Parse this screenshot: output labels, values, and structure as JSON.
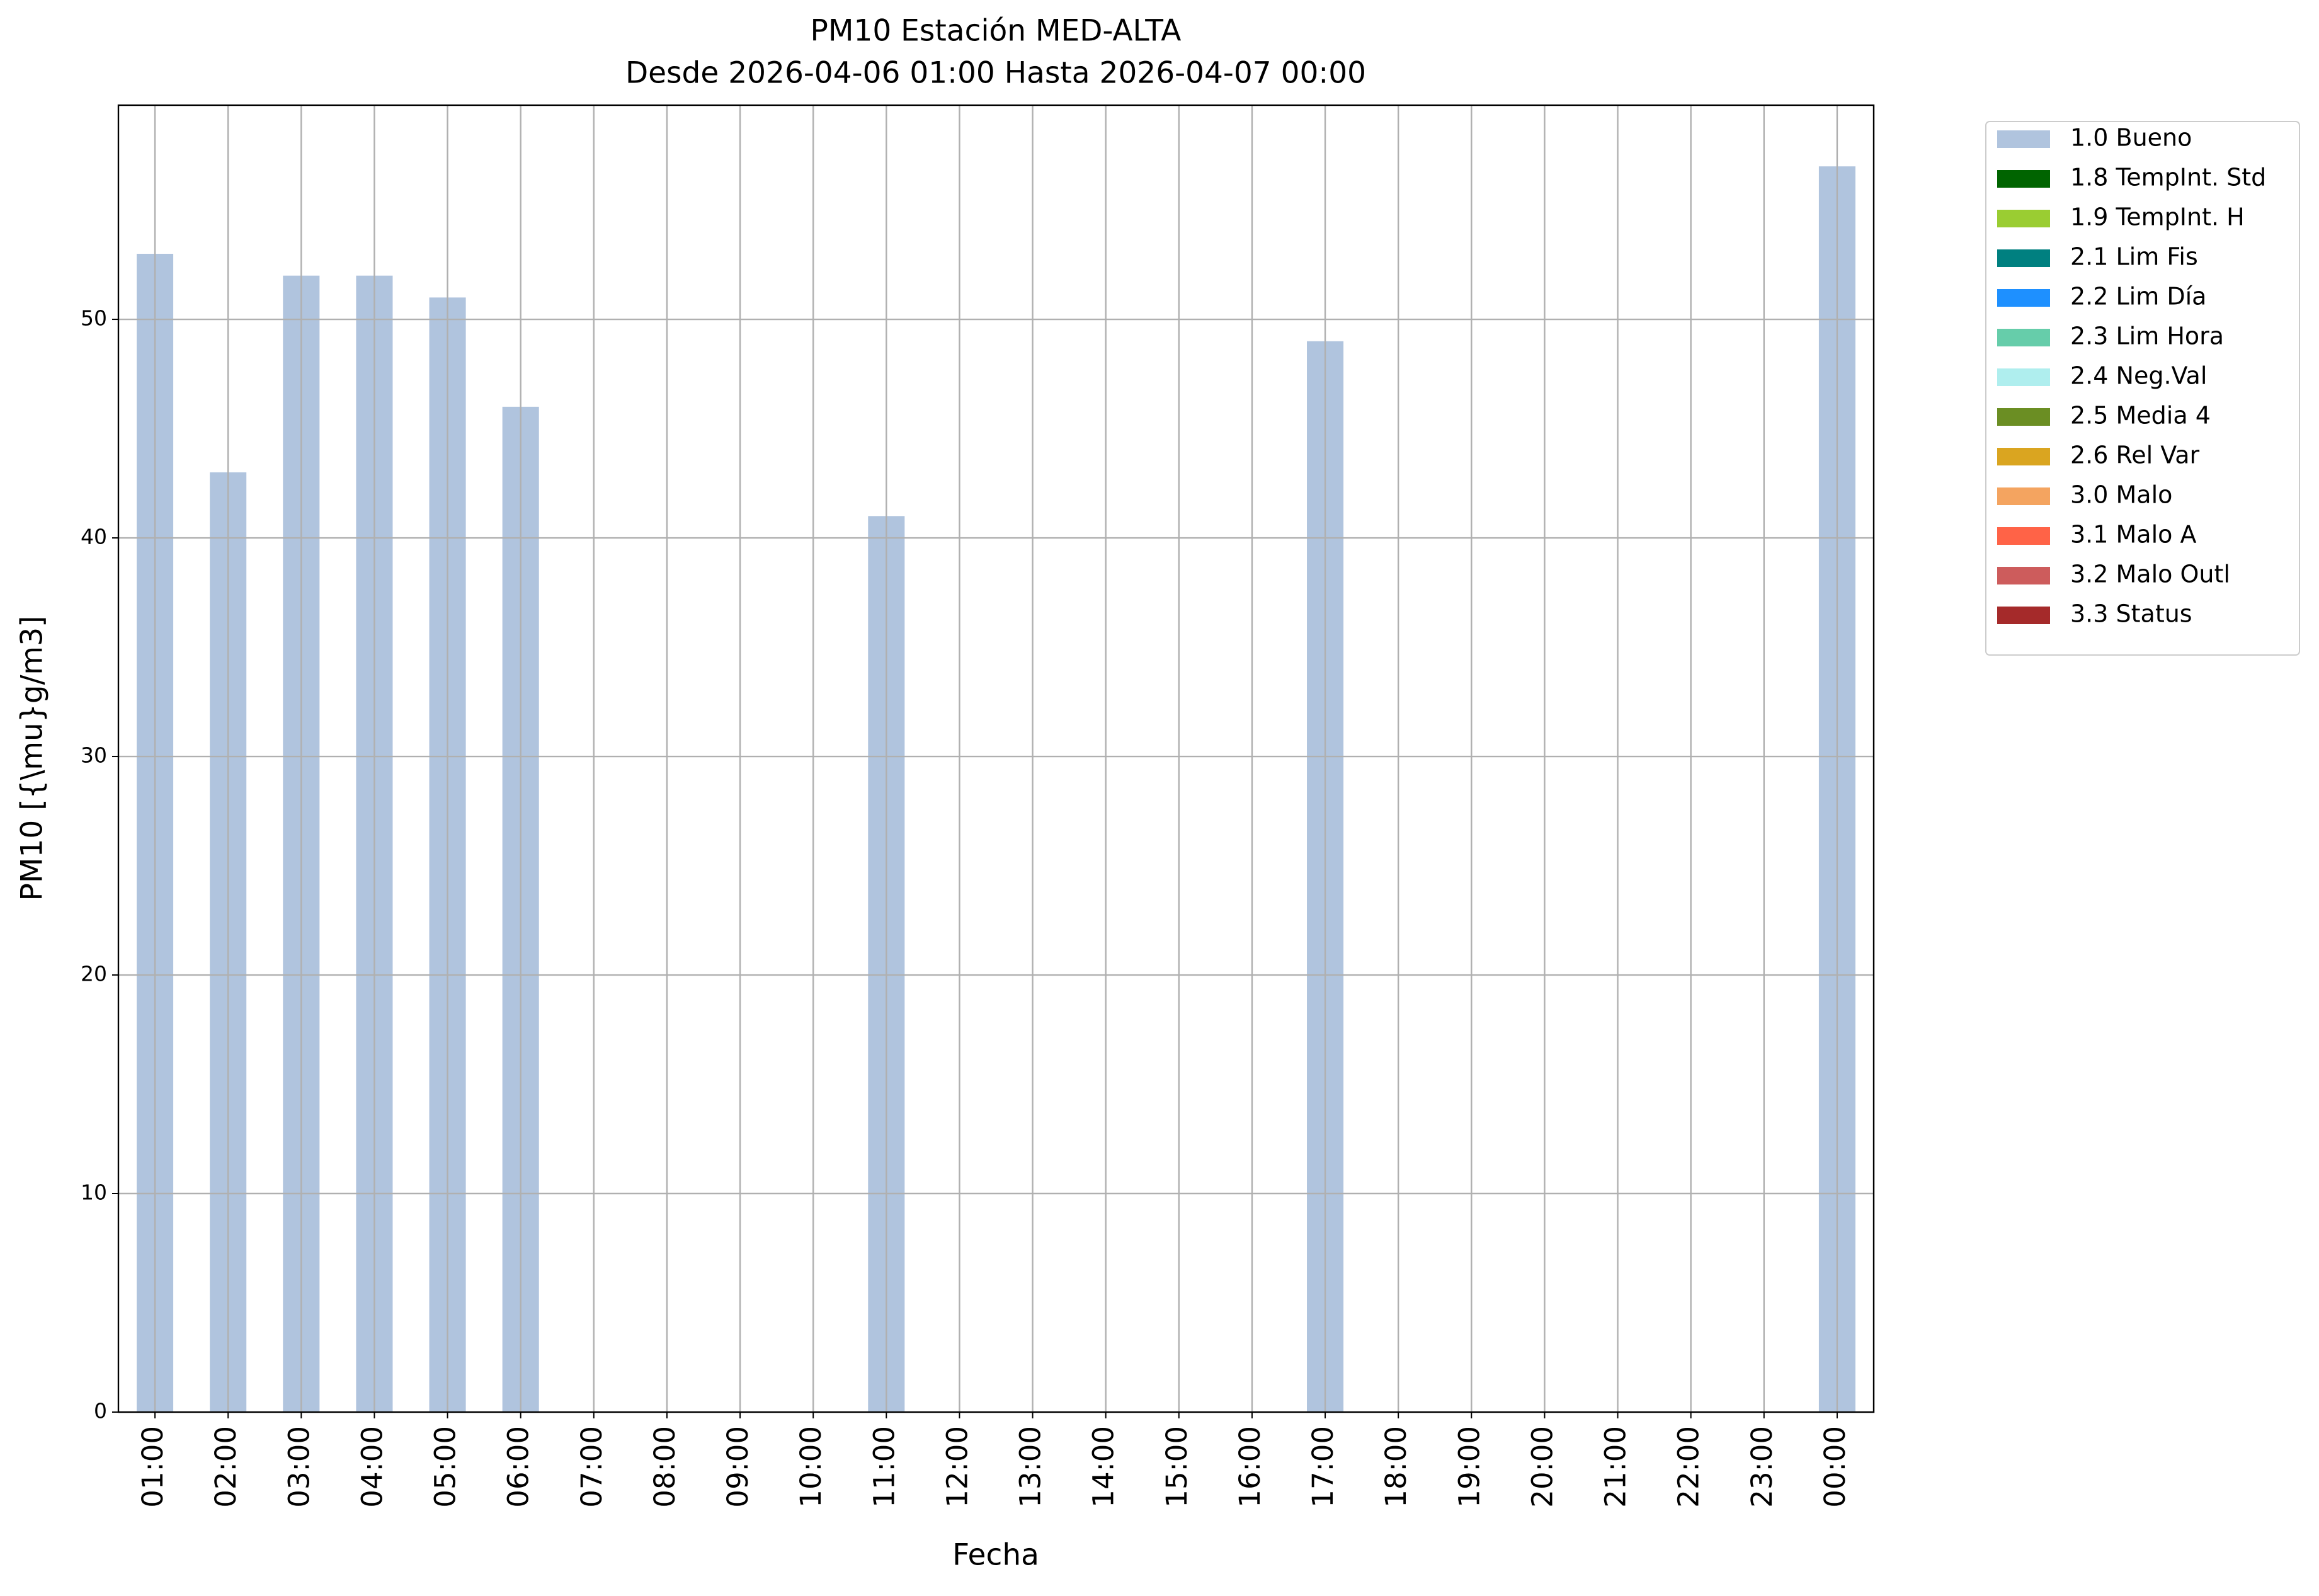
{
  "chart_data": {
    "type": "bar",
    "title": "PM10 Estación MED-ALTA",
    "subtitle": "Desde 2026-04-06 01:00 Hasta 2026-04-07 00:00",
    "x_label": "Fecha",
    "y_label": "PM10 [{\\mu}g/m3]",
    "categories": [
      "01:00",
      "02:00",
      "03:00",
      "04:00",
      "05:00",
      "06:00",
      "07:00",
      "08:00",
      "09:00",
      "10:00",
      "11:00",
      "12:00",
      "13:00",
      "14:00",
      "15:00",
      "16:00",
      "17:00",
      "18:00",
      "19:00",
      "20:00",
      "21:00",
      "22:00",
      "23:00",
      "00:00"
    ],
    "series": [
      {
        "name": "1.0 Bueno",
        "color": "#b0c4de",
        "values": [
          53,
          43,
          52,
          52,
          51,
          46,
          null,
          null,
          null,
          null,
          41,
          null,
          null,
          null,
          null,
          null,
          49,
          null,
          null,
          null,
          null,
          null,
          null,
          57
        ]
      },
      {
        "name": "1.8 TempInt. Std",
        "color": "#006400",
        "values": [
          null,
          null,
          null,
          null,
          null,
          null,
          null,
          null,
          null,
          null,
          null,
          null,
          null,
          null,
          null,
          null,
          null,
          null,
          null,
          null,
          null,
          null,
          null,
          null
        ]
      },
      {
        "name": "1.9 TempInt. H",
        "color": "#9acd32",
        "values": [
          null,
          null,
          null,
          null,
          null,
          null,
          null,
          null,
          null,
          null,
          null,
          null,
          null,
          null,
          null,
          null,
          null,
          null,
          null,
          null,
          null,
          null,
          null,
          null
        ]
      },
      {
        "name": "2.1 Lim Fis",
        "color": "#008080",
        "values": [
          null,
          null,
          null,
          null,
          null,
          null,
          null,
          null,
          null,
          null,
          null,
          null,
          null,
          null,
          null,
          null,
          null,
          null,
          null,
          null,
          null,
          null,
          null,
          null
        ]
      },
      {
        "name": "2.2 Lim Día",
        "color": "#1e90ff",
        "values": [
          null,
          null,
          null,
          null,
          null,
          null,
          null,
          null,
          null,
          null,
          null,
          null,
          null,
          null,
          null,
          null,
          null,
          null,
          null,
          null,
          null,
          null,
          null,
          null
        ]
      },
      {
        "name": "2.3 Lim Hora",
        "color": "#66cdaa",
        "values": [
          null,
          null,
          null,
          null,
          null,
          null,
          null,
          null,
          null,
          null,
          null,
          null,
          null,
          null,
          null,
          null,
          null,
          null,
          null,
          null,
          null,
          null,
          null,
          null
        ]
      },
      {
        "name": "2.4 Neg.Val",
        "color": "#afeeee",
        "values": [
          null,
          null,
          null,
          null,
          null,
          null,
          null,
          null,
          null,
          null,
          null,
          null,
          null,
          null,
          null,
          null,
          null,
          null,
          null,
          null,
          null,
          null,
          null,
          null
        ]
      },
      {
        "name": "2.5 Media 4",
        "color": "#6b8e23",
        "values": [
          null,
          null,
          null,
          null,
          null,
          null,
          null,
          null,
          null,
          null,
          null,
          null,
          null,
          null,
          null,
          null,
          null,
          null,
          null,
          null,
          null,
          null,
          null,
          null
        ]
      },
      {
        "name": "2.6 Rel Var",
        "color": "#daa520",
        "values": [
          null,
          null,
          null,
          null,
          null,
          null,
          null,
          null,
          null,
          null,
          null,
          null,
          null,
          null,
          null,
          null,
          null,
          null,
          null,
          null,
          null,
          null,
          null,
          null
        ]
      },
      {
        "name": "3.0 Malo",
        "color": "#f4a460",
        "values": [
          null,
          null,
          null,
          null,
          null,
          null,
          null,
          null,
          null,
          null,
          null,
          null,
          null,
          null,
          null,
          null,
          null,
          null,
          null,
          null,
          null,
          null,
          null,
          null
        ]
      },
      {
        "name": "3.1 Malo A",
        "color": "#ff6347",
        "values": [
          null,
          null,
          null,
          null,
          null,
          null,
          null,
          null,
          null,
          null,
          null,
          null,
          null,
          null,
          null,
          null,
          null,
          null,
          null,
          null,
          null,
          null,
          null,
          null
        ]
      },
      {
        "name": "3.2 Malo Outl",
        "color": "#cd5c5c",
        "values": [
          null,
          null,
          null,
          null,
          null,
          null,
          null,
          null,
          null,
          null,
          null,
          null,
          null,
          null,
          null,
          null,
          null,
          null,
          null,
          null,
          null,
          null,
          null,
          null
        ]
      },
      {
        "name": "3.3 Status",
        "color": "#a52a2a",
        "values": [
          null,
          null,
          null,
          null,
          null,
          null,
          null,
          null,
          null,
          null,
          null,
          null,
          null,
          null,
          null,
          null,
          null,
          null,
          null,
          null,
          null,
          null,
          null,
          null
        ]
      }
    ],
    "ylim": [
      0,
      59.8
    ],
    "yticks": [
      0,
      10,
      20,
      30,
      40,
      50
    ],
    "grid": true,
    "legend": "outside-upper-right"
  }
}
